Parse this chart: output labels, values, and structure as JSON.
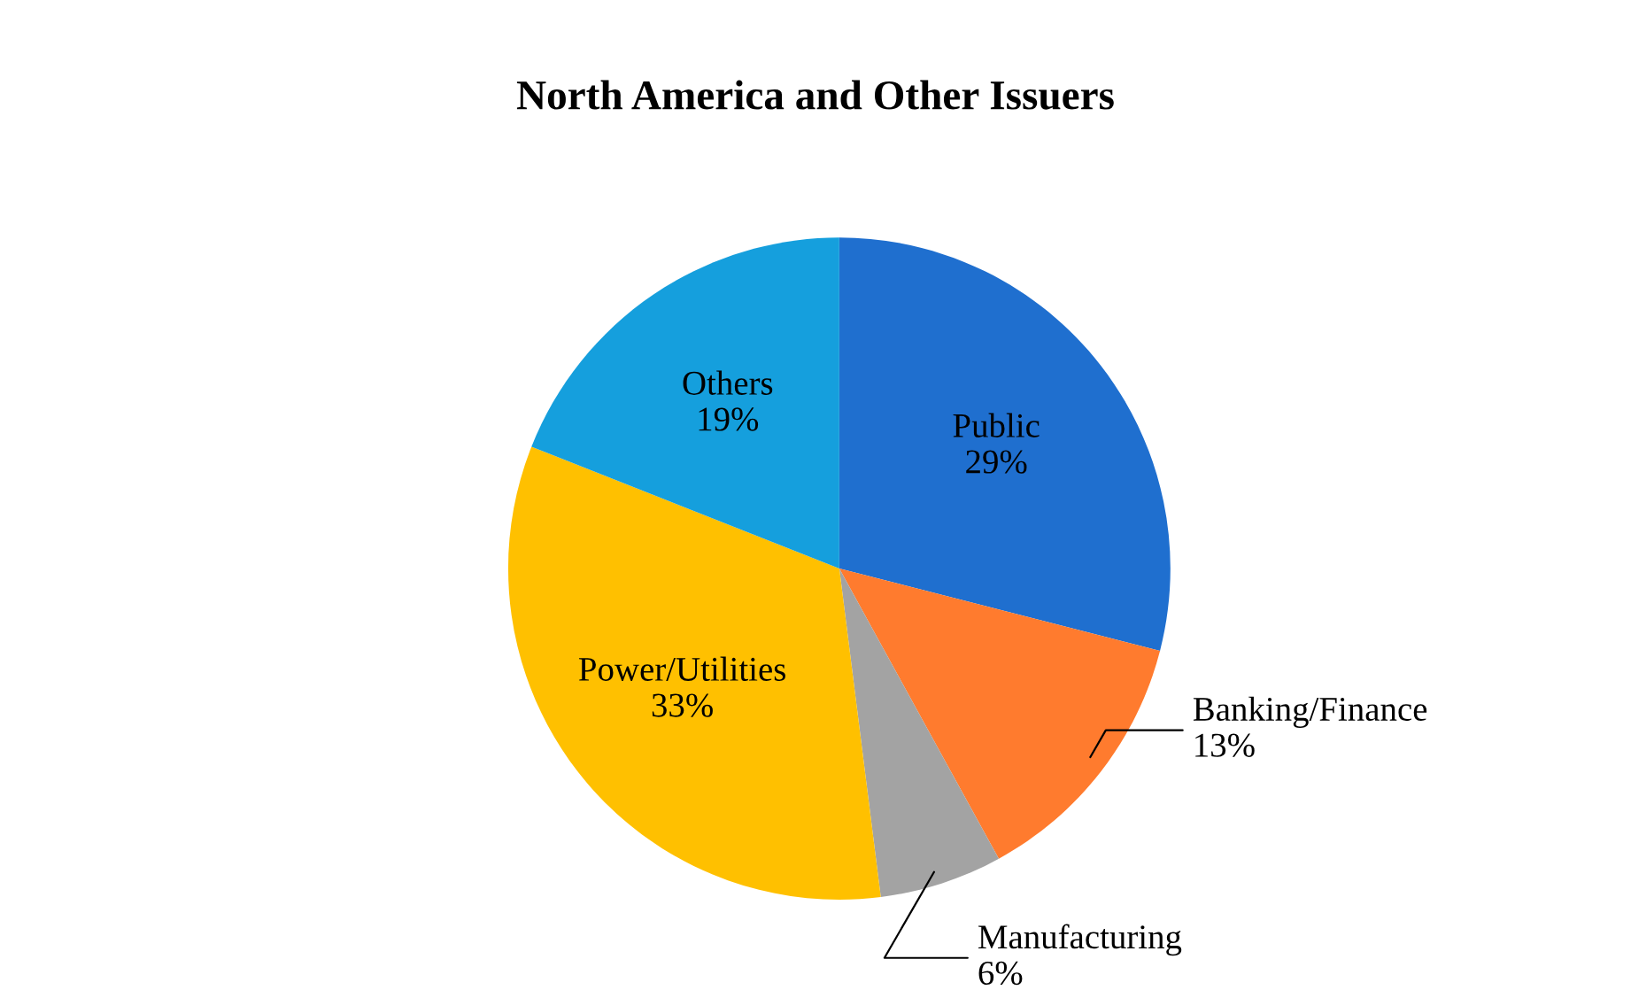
{
  "chart_data": {
    "type": "pie",
    "title": "North America and Other Issuers",
    "categories": [
      "Public",
      "Banking/Finance",
      "Manufacturing",
      "Power/Utilities",
      "Others"
    ],
    "values": [
      29,
      13,
      6,
      33,
      19
    ],
    "value_labels": [
      "29%",
      "13%",
      "6%",
      "33%",
      "19%"
    ],
    "colors": [
      "#1f6fcf",
      "#ff7b2e",
      "#a3a3a3",
      "#ffc000",
      "#159fdd"
    ],
    "legend": false
  }
}
